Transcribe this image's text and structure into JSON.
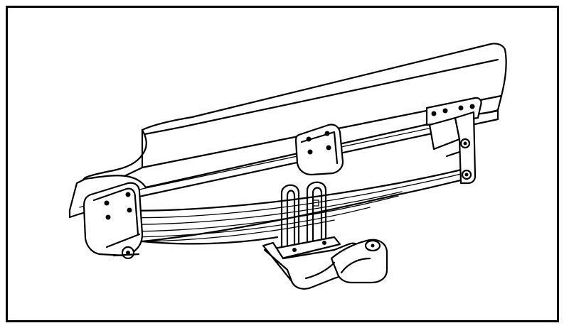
{
  "figure": {
    "frame_color": "#000000",
    "background_color": "#ffffff",
    "icons": [
      "chassis-frame-rail",
      "leaf-spring",
      "spring-hanger-bracket",
      "shackle",
      "u-bolt",
      "axle-seat-bracket",
      "bump-stop-bracket"
    ]
  }
}
